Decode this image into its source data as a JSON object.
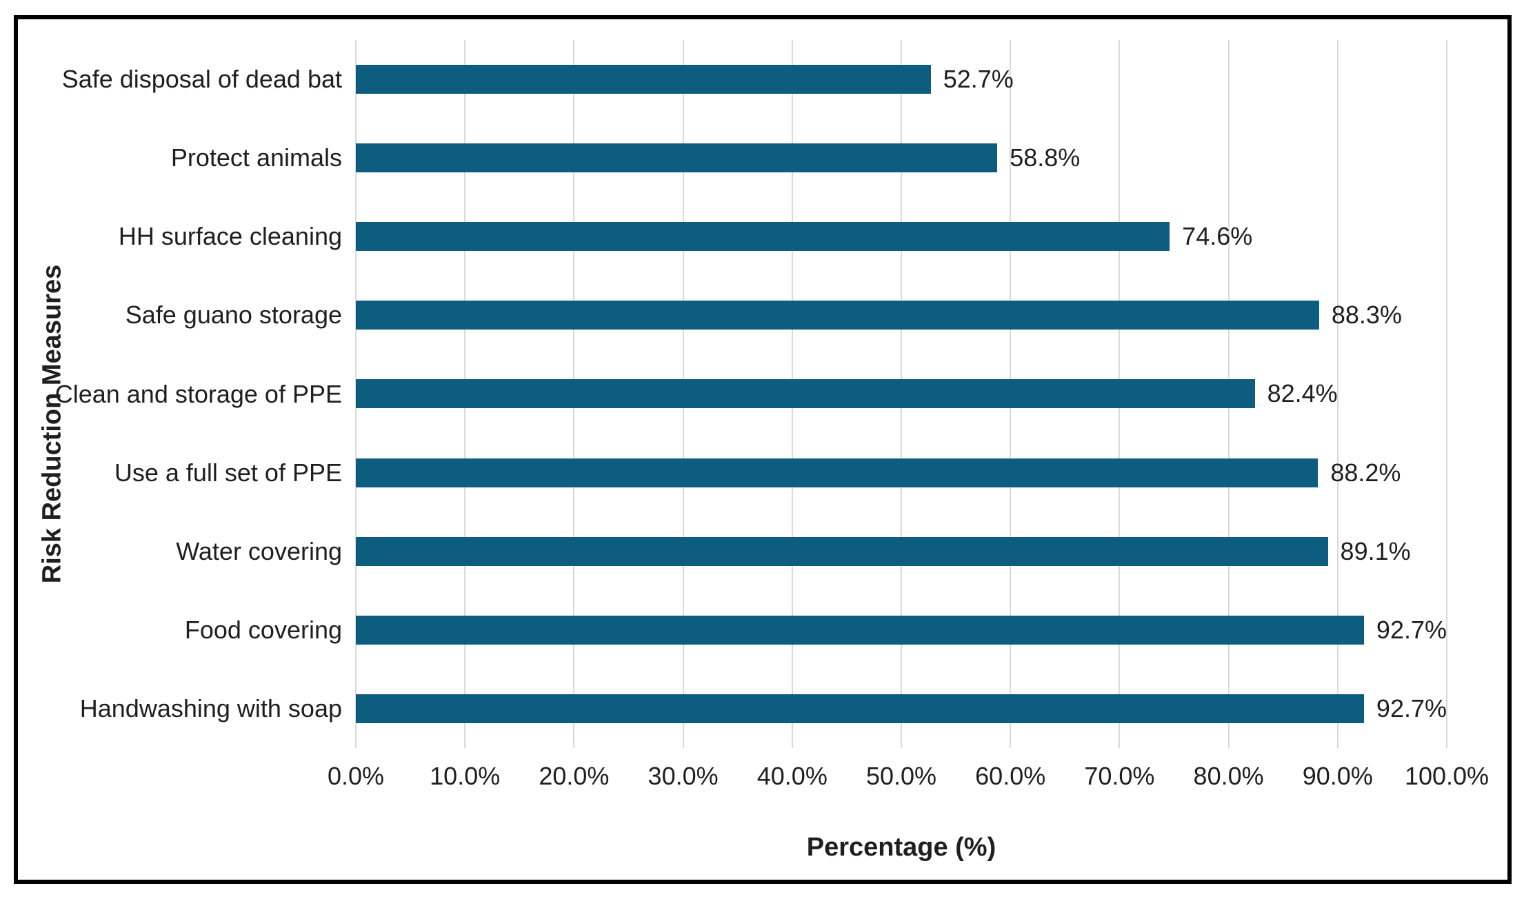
{
  "chart_data": {
    "type": "bar",
    "orientation": "horizontal",
    "xlabel": "Percentage (%)",
    "ylabel": "Risk Reduction Measures",
    "categories": [
      "Safe disposal of dead bat",
      "Protect animals",
      "HH surface cleaning",
      "Safe guano storage",
      "Clean and storage of PPE",
      "Use a full set of PPE",
      "Water covering",
      "Food covering",
      "Handwashing with soap"
    ],
    "values": [
      52.7,
      58.8,
      74.6,
      88.3,
      82.4,
      88.2,
      89.1,
      92.7,
      92.7
    ],
    "value_labels": [
      "52.7%",
      "58.8%",
      "74.6%",
      "88.3%",
      "82.4%",
      "88.2%",
      "89.1%",
      "92.7%",
      "92.7%"
    ],
    "x_ticks": [
      "0.0%",
      "10.0%",
      "20.0%",
      "30.0%",
      "40.0%",
      "50.0%",
      "60.0%",
      "70.0%",
      "80.0%",
      "90.0%",
      "100.0%"
    ],
    "x_tick_values": [
      0,
      10,
      20,
      30,
      40,
      50,
      60,
      70,
      80,
      90,
      100
    ],
    "xlim": [
      0,
      100
    ],
    "grid": "vertical",
    "legend": "none",
    "colors": {
      "bar": "#0d5d80",
      "gridline": "#d9d9d9",
      "text": "#1f1f1f",
      "frame_border": "#000000",
      "background": "#ffffff"
    }
  }
}
